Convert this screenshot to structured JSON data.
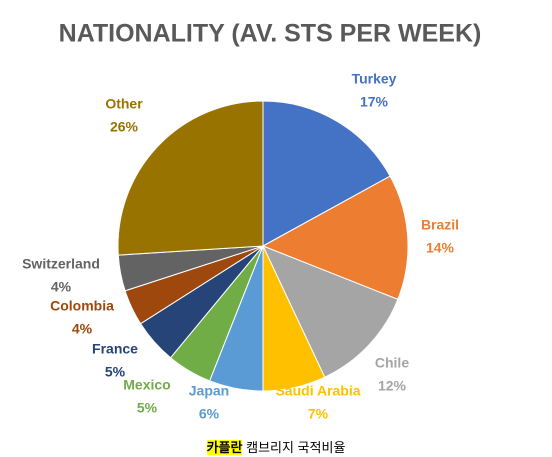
{
  "chart_data": {
    "type": "pie",
    "title": "NATIONALITY (AV. STS PER WEEK)",
    "categories": [
      "Turkey",
      "Brazil",
      "Chile",
      "Saudi Arabia",
      "Japan",
      "Mexico",
      "France",
      "Colombia",
      "Switzerland",
      "Other"
    ],
    "values": [
      17,
      14,
      12,
      7,
      6,
      5,
      5,
      4,
      4,
      26
    ],
    "value_labels": [
      "17%",
      "14%",
      "12%",
      "7%",
      "6%",
      "5%",
      "5%",
      "4%",
      "4%",
      "26%"
    ],
    "colors": [
      "#4472c4",
      "#ed7d31",
      "#a5a5a5",
      "#ffc000",
      "#5b9bd5",
      "#70ad47",
      "#264478",
      "#9e480e",
      "#636363",
      "#997300"
    ]
  },
  "caption": {
    "highlight": "카플란",
    "text": "캠브리지 국적비율"
  }
}
